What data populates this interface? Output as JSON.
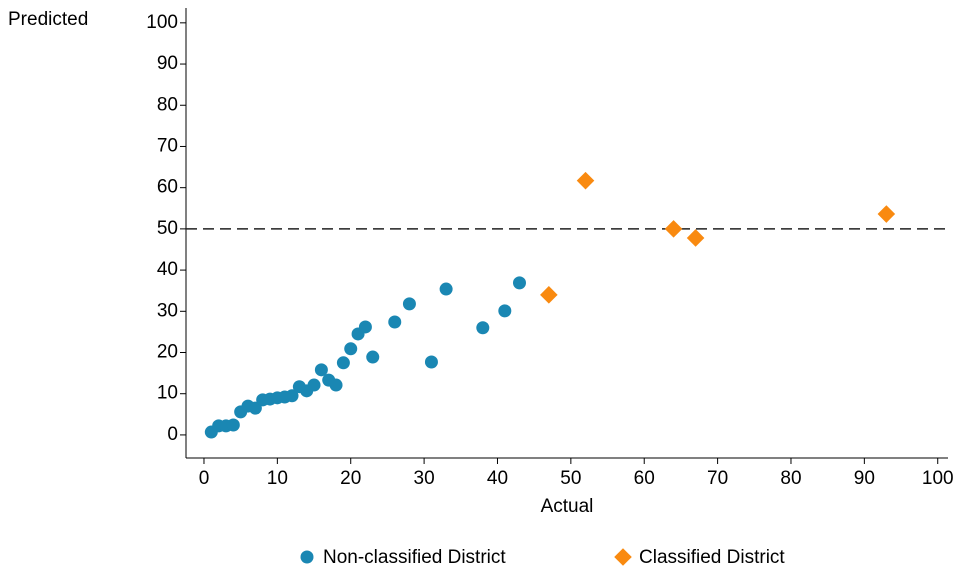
{
  "chart_data": {
    "type": "scatter",
    "xlabel": "Actual",
    "ylabel": "Predicted",
    "xlim": [
      -2.45,
      101.4
    ],
    "ylim": [
      -5.6,
      103.6
    ],
    "xticks": [
      0,
      10,
      20,
      30,
      40,
      50,
      60,
      70,
      80,
      90,
      100
    ],
    "yticks": [
      0,
      10,
      20,
      30,
      40,
      50,
      60,
      70,
      80,
      90,
      100
    ],
    "reference_line": 50,
    "legend": "bottom",
    "series": [
      {
        "name": "Non-classified District",
        "color": "#1a87b3",
        "marker": "circle",
        "x": [
          1,
          2,
          3,
          4,
          5,
          6,
          7,
          8,
          9,
          10,
          11,
          12,
          13,
          14,
          15,
          16,
          17,
          18,
          19,
          20,
          21,
          22,
          23,
          26,
          28,
          31,
          33,
          38,
          41,
          43
        ],
        "y": [
          0.7,
          2.2,
          2.2,
          2.4,
          5.6,
          7.0,
          6.5,
          8.5,
          8.7,
          9.0,
          9.2,
          9.5,
          11.7,
          10.7,
          12.1,
          15.8,
          13.3,
          12.1,
          17.5,
          20.9,
          24.5,
          26.2,
          18.9,
          27.4,
          31.8,
          17.7,
          35.4,
          26.0,
          30.1,
          36.9
        ]
      },
      {
        "name": "Classified District",
        "color": "#f98a10",
        "marker": "diamond",
        "x": [
          47,
          52,
          64,
          67,
          93
        ],
        "y": [
          34.0,
          61.7,
          50.0,
          47.8,
          53.6
        ]
      }
    ]
  }
}
